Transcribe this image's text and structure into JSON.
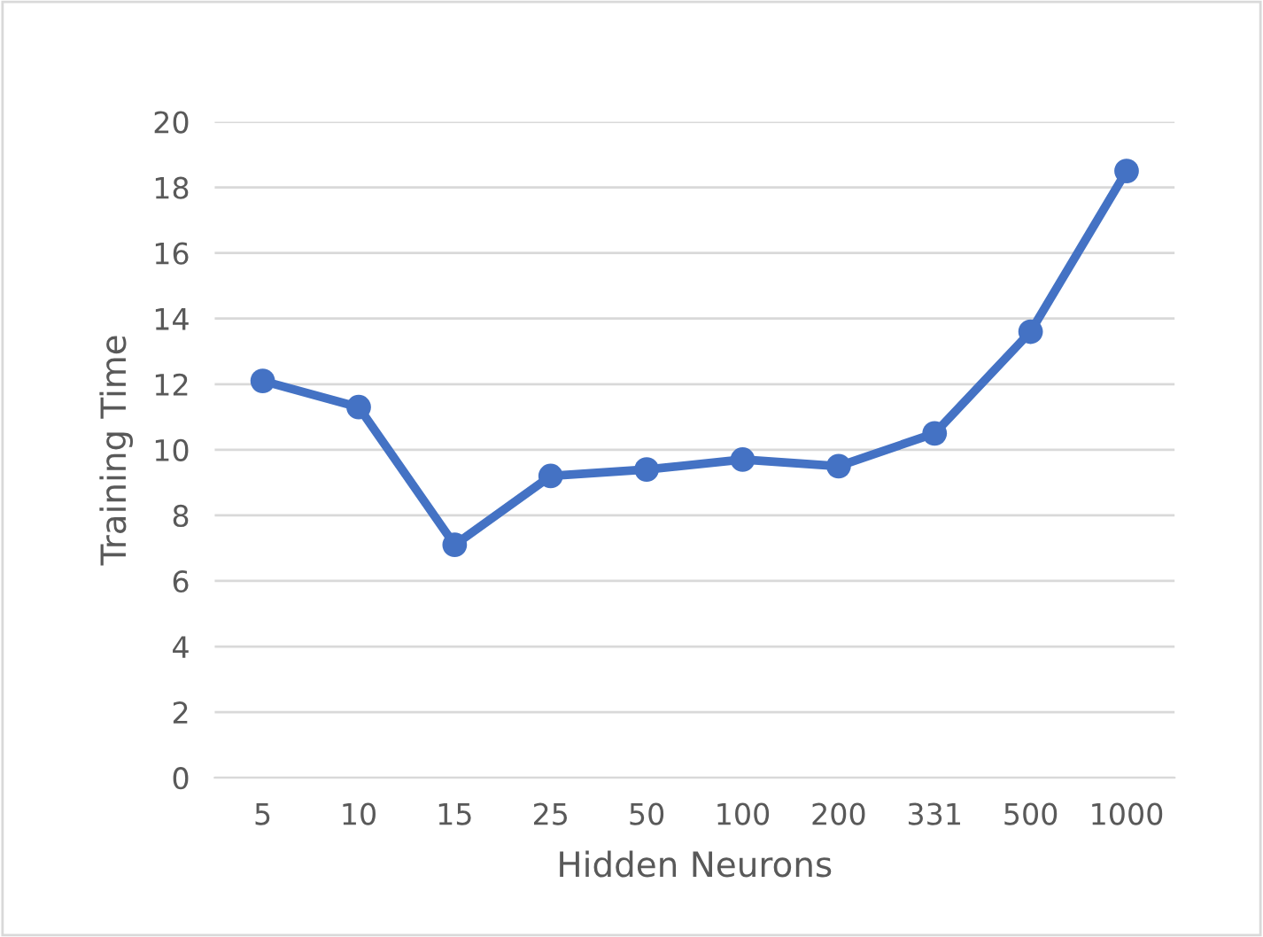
{
  "chart_data": {
    "type": "line",
    "xlabel": "Hidden Neurons",
    "ylabel": "Training Time",
    "categories": [
      "5",
      "10",
      "15",
      "25",
      "50",
      "100",
      "200",
      "331",
      "500",
      "1000"
    ],
    "series": [
      {
        "color": "#4472c4",
        "values": [
          12.1,
          11.3,
          7.1,
          9.2,
          9.4,
          9.7,
          9.5,
          10.5,
          13.6,
          18.5
        ]
      }
    ],
    "ylim": [
      0,
      20
    ],
    "yticks": [
      0,
      2,
      4,
      6,
      8,
      10,
      12,
      14,
      16,
      18,
      20
    ],
    "grid": "y",
    "marker": "circle",
    "line_style": "solid"
  }
}
